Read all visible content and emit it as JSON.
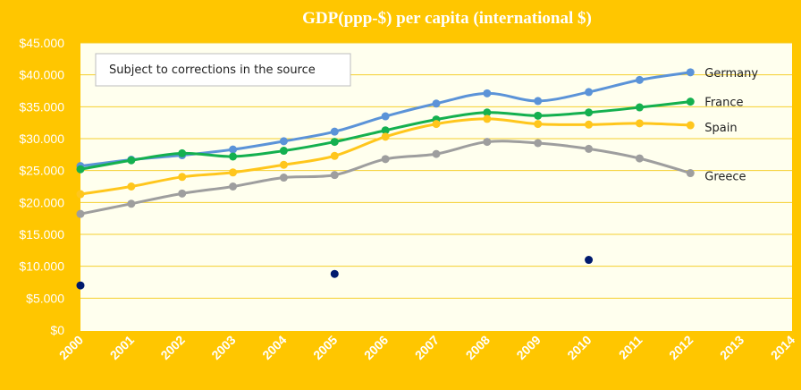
{
  "chart_data": {
    "type": "line",
    "title": "GDP(ppp-$) per capita (international  $)",
    "note": "Subject to corrections  in the source",
    "x_ticks": [
      "2000",
      "2001",
      "2002",
      "2003",
      "2004",
      "2005",
      "2006",
      "2007",
      "2008",
      "2009",
      "2010",
      "2011",
      "2012",
      "2013",
      "2014"
    ],
    "y_ticks": [
      "$0",
      "$5.000",
      "$10.000",
      "$15.000",
      "$20.000",
      "$25.000",
      "$30.000",
      "$35.000",
      "$40.000",
      "$45.000"
    ],
    "ylim": [
      0,
      45000
    ],
    "xlim": [
      2000,
      2014
    ],
    "grid": true,
    "colors": {
      "background": "#FFC600",
      "plot_area": "#FFFFEE",
      "gridline": "#F5CF2E",
      "Germany": "#5B93D8",
      "France": "#14B04F",
      "Spain": "#FFC61C",
      "Greece": "#9E9E9E",
      "markers": "#001A6E"
    },
    "x": [
      2000,
      2001,
      2002,
      2003,
      2004,
      2005,
      2006,
      2007,
      2008,
      2009,
      2010,
      2011,
      2012
    ],
    "series": [
      {
        "name": "Germany",
        "values": [
          25700,
          26700,
          27400,
          28300,
          29600,
          31100,
          33500,
          35500,
          37100,
          35900,
          37300,
          39200,
          40400
        ]
      },
      {
        "name": "France",
        "values": [
          25200,
          26600,
          27700,
          27200,
          28100,
          29500,
          31300,
          33000,
          34100,
          33600,
          34100,
          34900,
          35800
        ]
      },
      {
        "name": "Spain",
        "values": [
          21300,
          22500,
          24000,
          24700,
          25900,
          27300,
          30300,
          32300,
          33100,
          32300,
          32200,
          32400,
          32100
        ]
      },
      {
        "name": "Greece",
        "values": [
          18200,
          19800,
          21400,
          22500,
          23900,
          24300,
          26800,
          27600,
          29500,
          29300,
          28400,
          26900,
          24600
        ]
      }
    ],
    "extra_points": [
      {
        "x": 2000,
        "y": 7000
      },
      {
        "x": 2005,
        "y": 8800
      },
      {
        "x": 2010,
        "y": 11000
      }
    ]
  }
}
